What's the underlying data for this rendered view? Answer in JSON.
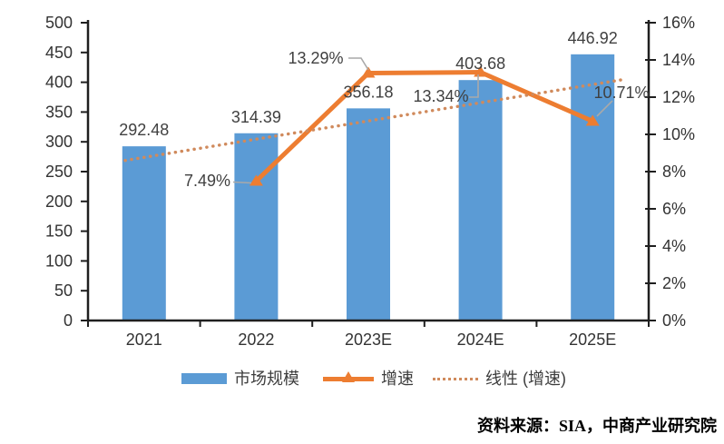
{
  "chart_data": {
    "type": "bar+line",
    "title": "",
    "categories": [
      "2021",
      "2022",
      "2023E",
      "2024E",
      "2025E"
    ],
    "series": [
      {
        "name": "市场规模",
        "type": "bar",
        "axis": "left",
        "color": "#5B9BD5",
        "values": [
          292.48,
          314.39,
          356.18,
          403.68,
          446.92
        ],
        "labels": [
          "292.48",
          "314.39",
          "356.18",
          "403.68",
          "446.92"
        ]
      },
      {
        "name": "增速",
        "type": "line",
        "axis": "right",
        "color": "#ED7D31",
        "marker": "triangle",
        "category_indexes": [
          1,
          2,
          3,
          4
        ],
        "values": [
          7.49,
          13.29,
          13.34,
          10.71
        ],
        "labels": [
          "7.49%",
          "13.29%",
          "13.34%",
          "10.71%"
        ]
      },
      {
        "name": "线性 (增速)",
        "type": "linear-trendline",
        "axis": "right",
        "color": "#D08A5C",
        "line_style": "dotted",
        "start_value": 8.6,
        "end_value": 12.97
      }
    ],
    "left_axis": {
      "min": 0,
      "max": 500,
      "step": 50,
      "tick_labels": [
        "0",
        "50",
        "100",
        "150",
        "200",
        "250",
        "300",
        "350",
        "400",
        "450",
        "500"
      ]
    },
    "right_axis": {
      "min": 0,
      "max": 16,
      "step": 2,
      "tick_labels": [
        "0%",
        "2%",
        "4%",
        "6%",
        "8%",
        "10%",
        "12%",
        "14%",
        "16%"
      ]
    },
    "legend": {
      "position": "bottom",
      "items": [
        "市场规模",
        "增速",
        "线性 (增速)"
      ]
    },
    "grid": false
  },
  "source_note": "资料来源：SIA，中商产业研究院",
  "colors": {
    "bar": "#5B9BD5",
    "line": "#ED7D31",
    "trendline": "#D08A5C",
    "leader": "#A9A9A9",
    "axis_line": "#1F1F1F",
    "axis_text": "#333333",
    "label_text": "#404040",
    "background": "#FFFFFF"
  }
}
